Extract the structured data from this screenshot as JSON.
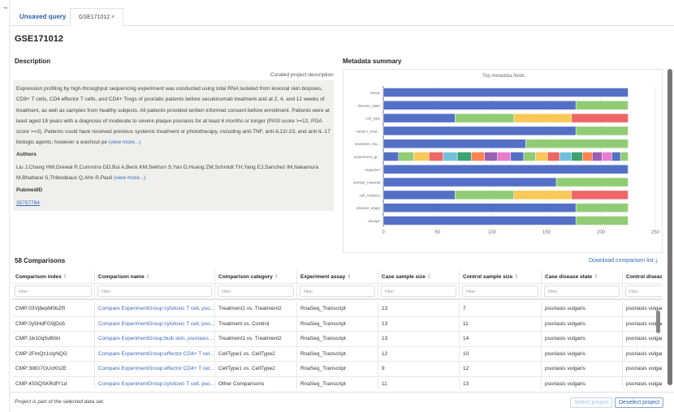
{
  "tabs": [
    {
      "label": "Unsaved query"
    },
    {
      "label": "GSE171012",
      "close": "×"
    }
  ],
  "title": "GSE171012",
  "description": {
    "heading": "Description",
    "source": "Curated project description",
    "text": "Expression profiling by high-throughput sequencing experiment was conducted using total RNA isolated from lesional skin biopsies, CD8+ T cells, CD4 effector T cells, and CD4+ Tregs of psoriatic patients before secukinumab treatment and at 2, 4, and 12 weeks of treatment, as well as samples from healthy subjects. All patients provided written informed consent before enrollment. Patients were at least aged 18 years with a diagnosis of moderate to severe plaque psoriasis for at least 6 months or longer (PASI score >=12, PGA score >=3). Patients could have received previous systemic treatment or phototherapy, including anti-TNF, anti-IL12/-23, and anti-IL-17 biologic agents; however a washout pe",
    "view_more": "(view more...)",
    "authors_label": "Authors",
    "authors": "Liu J,Chang HW,Grewal R,Cummins DD,Bui A,Beck KM,Sekhon S,Yan D,Huang ZM,Schmidt TH,Yang EJ,Sanchez IM,Nakamura M,Bhattarai S,Thibodeaux Q,Ahn R,Pauli",
    "pubmed_label": "PubmedID",
    "pubmed_id": "35757784"
  },
  "metadata": {
    "heading": "Metadata summary"
  },
  "chart_data": {
    "type": "bar",
    "orientation": "horizontal",
    "stacked": true,
    "title": "Top metadata fields",
    "categories": [
      "tissue",
      "disease_state",
      "cell_type",
      "subject_treat...",
      "treatment_sta...",
      "experiment_gr...",
      "organism",
      "sample_material",
      "cell_markers",
      "disease_stage",
      "dosage"
    ],
    "segments": [
      [
        225
      ],
      [
        177,
        48
      ],
      [
        66,
        54,
        53,
        52
      ],
      [
        177,
        48
      ],
      [
        131,
        94
      ],
      [
        14,
        14,
        14,
        13,
        13,
        13,
        12,
        12,
        12,
        12,
        11,
        11,
        11,
        11,
        10,
        9,
        9,
        9,
        8,
        7
      ],
      [
        225
      ],
      [
        159,
        66
      ],
      [
        66,
        54,
        53,
        52
      ],
      [
        177,
        48
      ],
      [
        177,
        48
      ]
    ],
    "xlim": [
      0,
      250
    ],
    "xticks": [
      0,
      50,
      100,
      150,
      200,
      250
    ],
    "grid": true,
    "colors": [
      "#5470c6",
      "#91cc75",
      "#fac858",
      "#ee6666",
      "#73c0de",
      "#3ba272",
      "#fc8452",
      "#9a60b4",
      "#ea7ccc"
    ]
  },
  "comparisons": {
    "heading": "58 Comparisons",
    "download": "Download comparison list ⤓",
    "filter_placeholder": "Filter",
    "columns": [
      "Comparison index",
      "Comparison name",
      "Comparison category",
      "Experiment assay",
      "Case sample size",
      "Control sample size",
      "Case disease state",
      "Control disease state"
    ],
    "rows": [
      [
        "CMP:03Vj8epM0bZR",
        "Compare ExperimentGroup:cytotoxic T cell, pso...",
        "Treatment1 vs. Treatment2",
        "RnaSeq_Transcript",
        "13",
        "7",
        "psoriasis vulgaris",
        "psoriasis vulgaris"
      ],
      [
        "CMP:0y5HdFG9jDo5",
        "Compare ExperimentGroup:cytotoxic T cell, pso...",
        "Treatment vs. Control",
        "RnaSeq_Transcript",
        "13",
        "11",
        "psoriasis vulgaris",
        "psoriasis vulgaris"
      ],
      [
        "CMP:1ik10q5vBhkl",
        "Compare ExperimentGroup:bulk skin, psoriasis ...",
        "Treatment1 vs. Treatment2",
        "RnaSeq_Transcript",
        "13",
        "14",
        "psoriasis vulgaris",
        "psoriasis vulgaris"
      ],
      [
        "CMP:2FmQz1slyNQG",
        "Compare ExperimentGroup:effector CD4+ T cel...",
        "CellType1 vs. CellType2",
        "RnaSeq_Transcript",
        "12",
        "10",
        "psoriasis vulgaris",
        "psoriasis vulgaris"
      ],
      [
        "CMP:3I8G7GUcKh2E",
        "Compare ExperimentGroup:effector CD4+ T cel...",
        "CellType1 vs. CellType2",
        "RnaSeq_Transcript",
        "9",
        "12",
        "psoriasis vulgaris",
        "psoriasis vulgaris"
      ],
      [
        "CMP:4S5QSKRdfY1d",
        "Compare ExperimentGroup:cytotoxic T cell, pso...",
        "Other Comparisons",
        "RnaSeq_Transcript",
        "11",
        "13",
        "psoriasis vulgaris",
        "psoriasis vulgaris"
      ]
    ]
  },
  "footer": {
    "note": "Project is part of the selected data set.",
    "select": "Select project",
    "deselect": "Deselect project"
  }
}
